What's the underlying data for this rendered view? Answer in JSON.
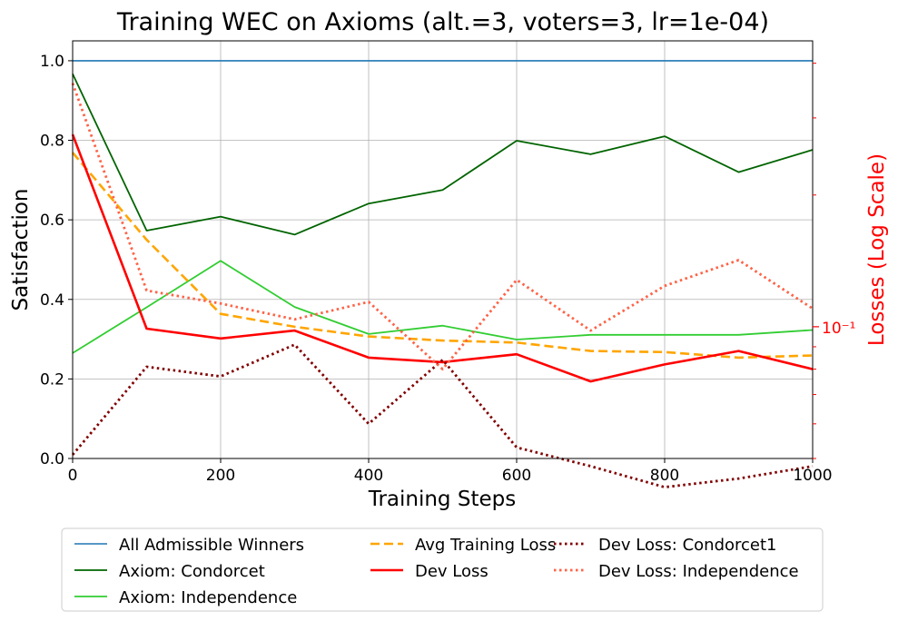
{
  "chart_data": {
    "type": "line",
    "title": "Training WEC on Axioms (alt.=3, voters=3, lr=1e-04)",
    "xlabel": "Training Steps",
    "ylabel": "Satisfaction",
    "ylabel_right": "Losses (Log Scale)",
    "xlim": [
      0,
      1000
    ],
    "ylim": [
      0,
      1.05
    ],
    "x_ticks": [
      "0",
      "200",
      "400",
      "600",
      "800",
      "1000"
    ],
    "y_ticks": [
      "0.0",
      "0.2",
      "0.4",
      "0.6",
      "0.8",
      "1.0"
    ],
    "right_scale": "log",
    "right_ylim": [
      0.05,
      0.45
    ],
    "right_tick_label": "10⁻¹",
    "grid": true,
    "legend_position": "below",
    "x": [
      0,
      100,
      200,
      300,
      400,
      500,
      600,
      700,
      800,
      900,
      1000
    ],
    "series": [
      {
        "name": "All Admissible Winners",
        "axis": "left",
        "color": "#1f77b4",
        "style": "solid",
        "width": 1.6,
        "values": [
          1.0,
          1.0,
          1.0,
          1.0,
          1.0,
          1.0,
          1.0,
          1.0,
          1.0,
          1.0,
          1.0
        ]
      },
      {
        "name": "Axiom: Condorcet",
        "axis": "left",
        "color": "#006400",
        "style": "solid",
        "width": 1.8,
        "values": [
          0.967,
          0.573,
          0.608,
          0.563,
          0.641,
          0.675,
          0.799,
          0.765,
          0.81,
          0.72,
          0.776
        ]
      },
      {
        "name": "Axiom: Independence",
        "axis": "left",
        "color": "#32cd32",
        "style": "solid",
        "width": 1.8,
        "values": [
          0.265,
          0.38,
          0.497,
          0.381,
          0.313,
          0.334,
          0.299,
          0.311,
          0.311,
          0.311,
          0.323
        ]
      },
      {
        "name": "Avg Training Loss",
        "axis": "right",
        "color": "#ffa500",
        "style": "dashed",
        "width": 2.6,
        "values": [
          0.25,
          0.158,
          0.107,
          0.1,
          0.095,
          0.093,
          0.092,
          0.088,
          0.0875,
          0.085,
          0.086
        ]
      },
      {
        "name": "Dev Loss",
        "axis": "right",
        "color": "#ff0000",
        "style": "solid",
        "width": 2.6,
        "values": [
          0.275,
          0.099,
          0.094,
          0.098,
          0.085,
          0.083,
          0.0865,
          0.075,
          0.082,
          0.088,
          0.08
        ]
      },
      {
        "name": "Dev Loss: Condorcet1",
        "axis": "right",
        "color": "#800000",
        "style": "dotted",
        "width": 2.8,
        "values": [
          0.051,
          0.081,
          0.077,
          0.091,
          0.06,
          0.084,
          0.053,
          0.048,
          0.043,
          0.045,
          0.048
        ]
      },
      {
        "name": "Dev Loss: Independence",
        "axis": "right",
        "color": "#ff6347",
        "style": "dotted",
        "width": 2.8,
        "values": [
          0.36,
          0.121,
          0.113,
          0.104,
          0.114,
          0.08,
          0.128,
          0.098,
          0.124,
          0.142,
          0.11
        ]
      }
    ]
  }
}
